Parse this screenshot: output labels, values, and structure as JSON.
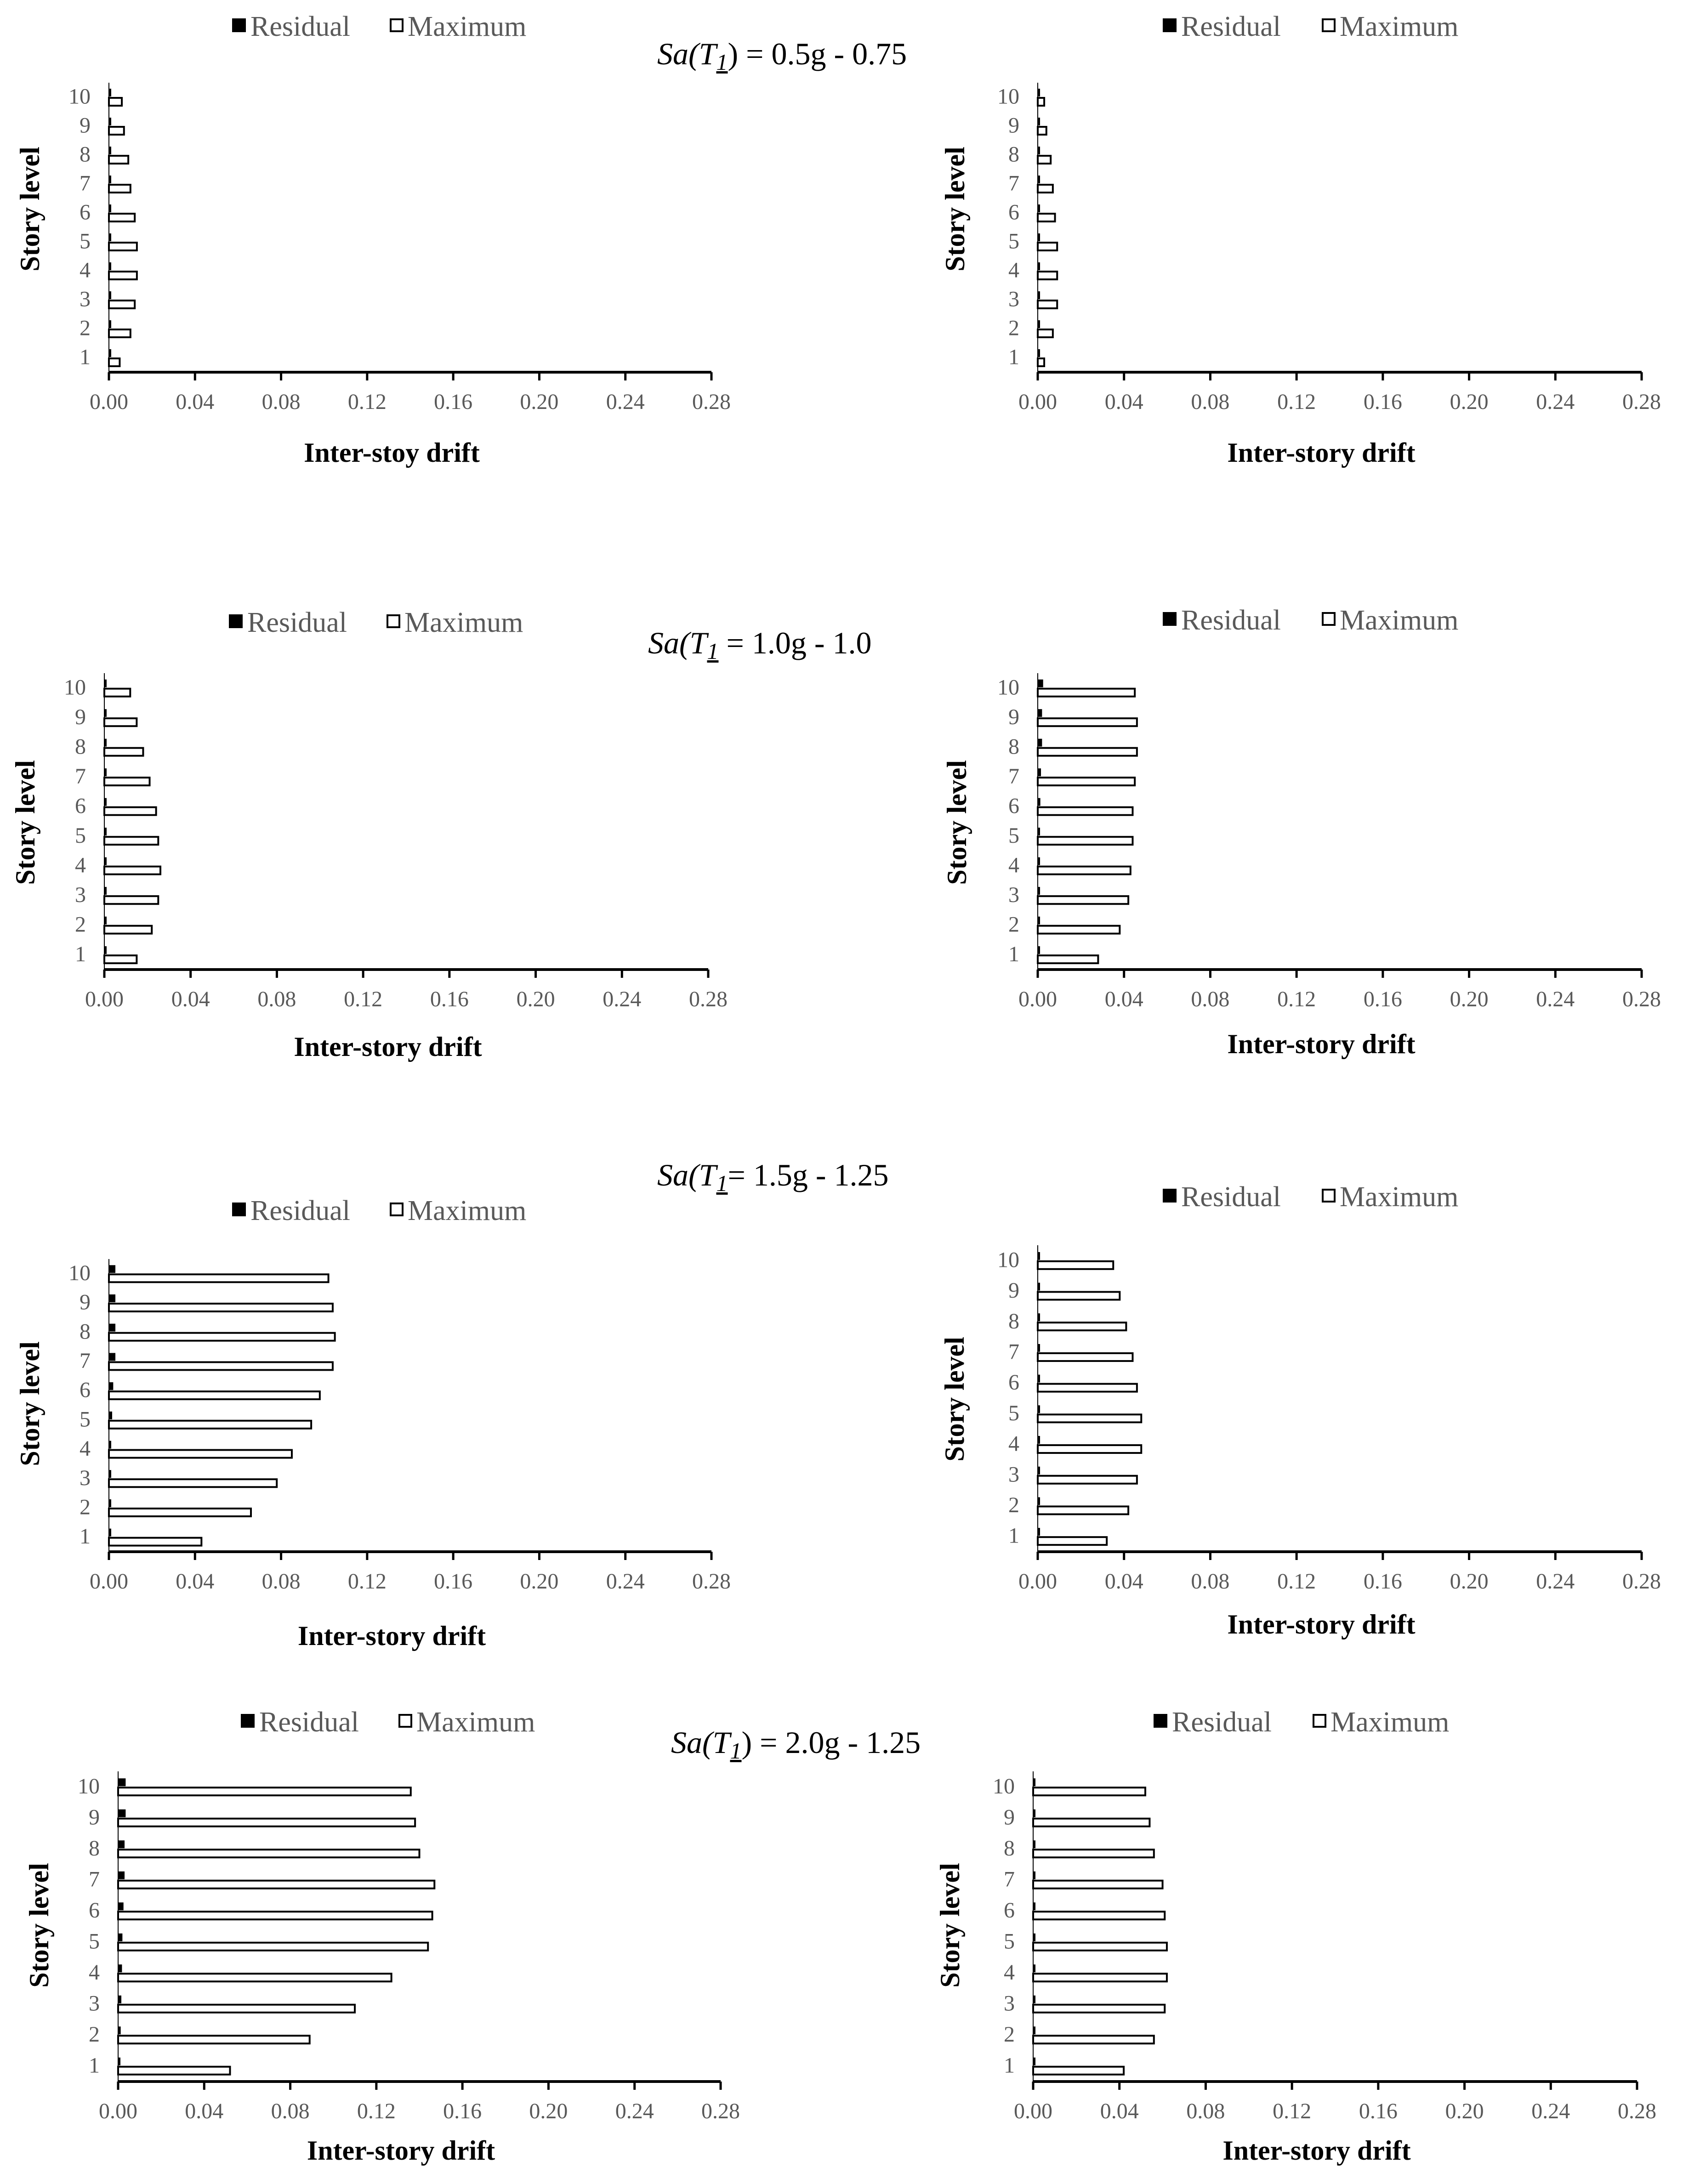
{
  "chart_data": [
    {
      "type": "bar",
      "orientation": "horizontal",
      "title_prefix": "Sa(T",
      "title_sub": "1",
      "title_suffix": ") = 0.5g - 0.75",
      "xlabel": "Inter-stoy drift",
      "ylabel": "Story level",
      "xlim": [
        0,
        0.28
      ],
      "xticks": [
        "0.00",
        "0.04",
        "0.08",
        "0.12",
        "0.16",
        "0.20",
        "0.24",
        "0.28"
      ],
      "categories": [
        "1",
        "2",
        "3",
        "4",
        "5",
        "6",
        "7",
        "8",
        "9",
        "10"
      ],
      "legend": [
        "Residual",
        "Maximum"
      ],
      "series": [
        {
          "name": "Residual",
          "values": [
            0.0003,
            0.0004,
            0.0004,
            0.0004,
            0.0004,
            0.0004,
            0.0003,
            0.0003,
            0.0003,
            0.0002
          ]
        },
        {
          "name": "Maximum",
          "values": [
            0.005,
            0.01,
            0.012,
            0.013,
            0.013,
            0.012,
            0.01,
            0.009,
            0.007,
            0.006
          ]
        }
      ]
    },
    {
      "type": "bar",
      "orientation": "horizontal",
      "xlabel": "Inter-story drift",
      "ylabel": "Story level",
      "xlim": [
        0,
        0.28
      ],
      "xticks": [
        "0.00",
        "0.04",
        "0.08",
        "0.12",
        "0.16",
        "0.20",
        "0.24",
        "0.28"
      ],
      "categories": [
        "1",
        "2",
        "3",
        "4",
        "5",
        "6",
        "7",
        "8",
        "9",
        "10"
      ],
      "legend": [
        "Residual",
        "Maximum"
      ],
      "series": [
        {
          "name": "Residual",
          "values": [
            0.0002,
            0.0002,
            0.0003,
            0.0003,
            0.0003,
            0.0003,
            0.0003,
            0.0002,
            0.0002,
            0.0002
          ]
        },
        {
          "name": "Maximum",
          "values": [
            0.003,
            0.007,
            0.009,
            0.009,
            0.009,
            0.008,
            0.007,
            0.006,
            0.004,
            0.003
          ]
        }
      ]
    },
    {
      "type": "bar",
      "orientation": "horizontal",
      "title_prefix": "Sa(T",
      "title_sub": "1",
      "title_suffix": " = 1.0g - 1.0",
      "xlabel": "Inter-story drift",
      "ylabel": "Story level",
      "xlim": [
        0,
        0.28
      ],
      "xticks": [
        "0.00",
        "0.04",
        "0.08",
        "0.12",
        "0.16",
        "0.20",
        "0.24",
        "0.28"
      ],
      "categories": [
        "1",
        "2",
        "3",
        "4",
        "5",
        "6",
        "7",
        "8",
        "9",
        "10"
      ],
      "legend": [
        "Residual",
        "Maximum"
      ],
      "series": [
        {
          "name": "Residual",
          "values": [
            0.0005,
            0.0006,
            0.0006,
            0.0006,
            0.0006,
            0.0006,
            0.0005,
            0.0005,
            0.0004,
            0.0004
          ]
        },
        {
          "name": "Maximum",
          "values": [
            0.015,
            0.022,
            0.025,
            0.026,
            0.025,
            0.024,
            0.021,
            0.018,
            0.015,
            0.012
          ]
        }
      ]
    },
    {
      "type": "bar",
      "orientation": "horizontal",
      "xlabel": "Inter-story drift",
      "ylabel": "Story level",
      "xlim": [
        0,
        0.28
      ],
      "xticks": [
        "0.00",
        "0.04",
        "0.08",
        "0.12",
        "0.16",
        "0.20",
        "0.24",
        "0.28"
      ],
      "categories": [
        "1",
        "2",
        "3",
        "4",
        "5",
        "6",
        "7",
        "8",
        "9",
        "10"
      ],
      "legend": [
        "Residual",
        "Maximum"
      ],
      "series": [
        {
          "name": "Residual",
          "values": [
            0.0005,
            0.0008,
            0.001,
            0.001,
            0.001,
            0.0012,
            0.0015,
            0.002,
            0.002,
            0.0025
          ]
        },
        {
          "name": "Maximum",
          "values": [
            0.028,
            0.038,
            0.042,
            0.043,
            0.044,
            0.044,
            0.045,
            0.046,
            0.046,
            0.045
          ]
        }
      ]
    },
    {
      "type": "bar",
      "orientation": "horizontal",
      "title_prefix": "Sa(T",
      "title_sub": "1",
      "title_suffix": "= 1.5g - 1.25",
      "xlabel": "Inter-story drift",
      "ylabel": "Story level",
      "xlim": [
        0,
        0.28
      ],
      "xticks": [
        "0.00",
        "0.04",
        "0.08",
        "0.12",
        "0.16",
        "0.20",
        "0.24",
        "0.28"
      ],
      "categories": [
        "1",
        "2",
        "3",
        "4",
        "5",
        "6",
        "7",
        "8",
        "9",
        "10"
      ],
      "legend": [
        "Residual",
        "Maximum"
      ],
      "series": [
        {
          "name": "Residual",
          "values": [
            0.0005,
            0.001,
            0.001,
            0.001,
            0.0015,
            0.002,
            0.003,
            0.003,
            0.003,
            0.003
          ]
        },
        {
          "name": "Maximum",
          "values": [
            0.043,
            0.066,
            0.078,
            0.085,
            0.094,
            0.098,
            0.104,
            0.105,
            0.104,
            0.102
          ]
        }
      ]
    },
    {
      "type": "bar",
      "orientation": "horizontal",
      "xlabel": "Inter-story drift",
      "ylabel": "Story level",
      "xlim": [
        0,
        0.28
      ],
      "xticks": [
        "0.00",
        "0.04",
        "0.08",
        "0.12",
        "0.16",
        "0.20",
        "0.24",
        "0.28"
      ],
      "categories": [
        "1",
        "2",
        "3",
        "4",
        "5",
        "6",
        "7",
        "8",
        "9",
        "10"
      ],
      "legend": [
        "Residual",
        "Maximum"
      ],
      "series": [
        {
          "name": "Residual",
          "values": [
            0.0005,
            0.0006,
            0.0006,
            0.0006,
            0.0006,
            0.0006,
            0.0005,
            0.0005,
            0.0004,
            0.0004
          ]
        },
        {
          "name": "Maximum",
          "values": [
            0.032,
            0.042,
            0.046,
            0.048,
            0.048,
            0.046,
            0.044,
            0.041,
            0.038,
            0.035
          ]
        }
      ]
    },
    {
      "type": "bar",
      "orientation": "horizontal",
      "title_prefix": "Sa(T",
      "title_sub": "1",
      "title_suffix": ") = 2.0g - 1.25",
      "xlabel": "Inter-story drift",
      "ylabel": "Story level",
      "xlim": [
        0,
        0.28
      ],
      "xticks": [
        "0.00",
        "0.04",
        "0.08",
        "0.12",
        "0.16",
        "0.20",
        "0.24",
        "0.28"
      ],
      "categories": [
        "1",
        "2",
        "3",
        "4",
        "5",
        "6",
        "7",
        "8",
        "9",
        "10"
      ],
      "legend": [
        "Residual",
        "Maximum"
      ],
      "series": [
        {
          "name": "Residual",
          "values": [
            0.0008,
            0.0012,
            0.0015,
            0.0018,
            0.002,
            0.0025,
            0.003,
            0.003,
            0.0035,
            0.0035
          ]
        },
        {
          "name": "Maximum",
          "values": [
            0.052,
            0.089,
            0.11,
            0.127,
            0.144,
            0.146,
            0.147,
            0.14,
            0.138,
            0.136
          ]
        }
      ]
    },
    {
      "type": "bar",
      "orientation": "horizontal",
      "xlabel": "Inter-story drift",
      "ylabel": "Story level",
      "xlim": [
        0,
        0.28
      ],
      "xticks": [
        "0.00",
        "0.04",
        "0.08",
        "0.12",
        "0.16",
        "0.20",
        "0.24",
        "0.28"
      ],
      "categories": [
        "1",
        "2",
        "3",
        "4",
        "5",
        "6",
        "7",
        "8",
        "9",
        "10"
      ],
      "legend": [
        "Residual",
        "Maximum"
      ],
      "series": [
        {
          "name": "Residual",
          "values": [
            0.0005,
            0.0007,
            0.0008,
            0.0008,
            0.0008,
            0.0008,
            0.0008,
            0.0007,
            0.0006,
            0.0006
          ]
        },
        {
          "name": "Maximum",
          "values": [
            0.042,
            0.056,
            0.061,
            0.062,
            0.062,
            0.061,
            0.06,
            0.056,
            0.054,
            0.052
          ]
        }
      ]
    }
  ]
}
